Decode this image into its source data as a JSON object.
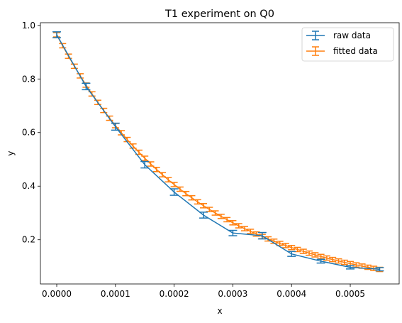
{
  "chart_data": {
    "type": "line",
    "title": "T1 experiment on Q0",
    "xlabel": "x",
    "ylabel": "y",
    "xlim": [
      -2.78e-05,
      0.0005833
    ],
    "ylim": [
      0.035,
      1.01
    ],
    "xticks": [
      0,
      0.0001,
      0.0002,
      0.0003,
      0.0004,
      0.0005
    ],
    "xtick_labels": [
      "0.0000",
      "0.0001",
      "0.0002",
      "0.0003",
      "0.0004",
      "0.0005"
    ],
    "yticks": [
      0.2,
      0.4,
      0.6,
      0.8,
      1.0
    ],
    "ytick_labels": [
      "0.2",
      "0.4",
      "0.6",
      "0.8",
      "1.0"
    ],
    "grid": false,
    "legend_position": "top-right",
    "series": [
      {
        "name": "raw data",
        "color": "#1f77b4",
        "x": [
          0,
          5e-05,
          0.0001,
          0.00015,
          0.0002,
          0.00025,
          0.0003,
          0.00035,
          0.0004,
          0.00045,
          0.0005,
          0.00055
        ],
        "y": [
          0.965,
          0.772,
          0.622,
          0.48,
          0.378,
          0.292,
          0.225,
          0.215,
          0.147,
          0.12,
          0.097,
          0.09
        ],
        "yerr": [
          0.011,
          0.012,
          0.013,
          0.012,
          0.012,
          0.011,
          0.01,
          0.012,
          0.009,
          0.007,
          0.006,
          0.006
        ]
      },
      {
        "name": "fitted data",
        "color": "#ff7f0e",
        "function": "0.965*exp(-x/0.000231)",
        "x_start": 0,
        "x_end": 0.00055,
        "n_points": 56,
        "yerr": 0.008
      }
    ]
  }
}
